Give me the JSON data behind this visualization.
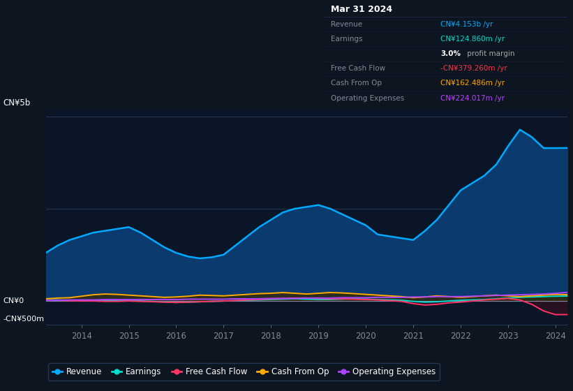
{
  "background_color": "#0d1520",
  "chart_bg_color": "#0a1628",
  "title_box": {
    "date": "Mar 31 2024",
    "rows": [
      {
        "label": "Revenue",
        "value": "CN¥4.153b /yr",
        "value_color": "#00aaff"
      },
      {
        "label": "Earnings",
        "value": "CN¥124.860m /yr",
        "value_color": "#00ddcc"
      },
      {
        "label": "",
        "value": "3.0%",
        "extra": " profit margin",
        "value_color": "#ffffff"
      },
      {
        "label": "Free Cash Flow",
        "value": "-CN¥379.260m /yr",
        "value_color": "#ff3344"
      },
      {
        "label": "Cash From Op",
        "value": "CN¥162.486m /yr",
        "value_color": "#ffaa00"
      },
      {
        "label": "Operating Expenses",
        "value": "CN¥224.017m /yr",
        "value_color": "#bb44ff"
      }
    ]
  },
  "ylabel": "CN¥5b",
  "y0_label": "CN¥0",
  "yneg_label": "-CN¥500m",
  "years": [
    2013.25,
    2013.5,
    2013.75,
    2014.0,
    2014.25,
    2014.5,
    2014.75,
    2015.0,
    2015.25,
    2015.5,
    2015.75,
    2016.0,
    2016.25,
    2016.5,
    2016.75,
    2017.0,
    2017.25,
    2017.5,
    2017.75,
    2018.0,
    2018.25,
    2018.5,
    2018.75,
    2019.0,
    2019.25,
    2019.5,
    2019.75,
    2020.0,
    2020.25,
    2020.5,
    2020.75,
    2021.0,
    2021.25,
    2021.5,
    2021.75,
    2022.0,
    2022.25,
    2022.5,
    2022.75,
    2023.0,
    2023.25,
    2023.5,
    2023.75,
    2024.0,
    2024.25
  ],
  "revenue": [
    1.3,
    1.5,
    1.65,
    1.75,
    1.85,
    1.9,
    1.95,
    2.0,
    1.85,
    1.65,
    1.45,
    1.3,
    1.2,
    1.15,
    1.18,
    1.25,
    1.5,
    1.75,
    2.0,
    2.2,
    2.4,
    2.5,
    2.55,
    2.6,
    2.5,
    2.35,
    2.2,
    2.05,
    1.8,
    1.75,
    1.7,
    1.65,
    1.9,
    2.2,
    2.6,
    3.0,
    3.2,
    3.4,
    3.7,
    4.2,
    4.65,
    4.45,
    4.15,
    4.15,
    4.153
  ],
  "earnings": [
    0.02,
    0.02,
    0.01,
    0.01,
    0.01,
    0.005,
    0.0,
    -0.005,
    -0.01,
    -0.02,
    -0.035,
    -0.05,
    -0.04,
    -0.03,
    -0.02,
    -0.01,
    0.0,
    0.01,
    0.02,
    0.03,
    0.04,
    0.05,
    0.04,
    0.03,
    0.03,
    0.04,
    0.05,
    0.04,
    0.03,
    0.02,
    0.01,
    -0.02,
    -0.04,
    -0.03,
    -0.01,
    0.01,
    0.02,
    0.03,
    0.05,
    0.07,
    0.09,
    0.1,
    0.11,
    0.12,
    0.1248
  ],
  "free_cash_flow": [
    0.01,
    0.01,
    0.0,
    -0.01,
    -0.01,
    -0.02,
    -0.02,
    -0.01,
    -0.02,
    -0.03,
    -0.04,
    -0.05,
    -0.04,
    -0.03,
    -0.02,
    -0.01,
    0.0,
    0.02,
    0.03,
    0.05,
    0.06,
    0.07,
    0.07,
    0.06,
    0.05,
    0.05,
    0.04,
    0.03,
    0.02,
    0.0,
    -0.02,
    -0.08,
    -0.12,
    -0.1,
    -0.06,
    -0.04,
    -0.01,
    0.02,
    0.04,
    0.06,
    0.02,
    -0.1,
    -0.28,
    -0.38,
    -0.3792
  ],
  "cash_from_op": [
    0.05,
    0.07,
    0.08,
    0.12,
    0.16,
    0.18,
    0.17,
    0.15,
    0.13,
    0.11,
    0.09,
    0.1,
    0.12,
    0.15,
    0.14,
    0.13,
    0.15,
    0.17,
    0.19,
    0.2,
    0.22,
    0.2,
    0.18,
    0.2,
    0.22,
    0.21,
    0.19,
    0.17,
    0.15,
    0.13,
    0.11,
    0.08,
    0.1,
    0.13,
    0.11,
    0.09,
    0.11,
    0.13,
    0.15,
    0.13,
    0.11,
    0.13,
    0.15,
    0.17,
    0.1625
  ],
  "operating_expenses": [
    0.01,
    0.01,
    0.02,
    0.02,
    0.02,
    0.03,
    0.03,
    0.03,
    0.03,
    0.03,
    0.03,
    0.03,
    0.04,
    0.04,
    0.04,
    0.04,
    0.05,
    0.05,
    0.05,
    0.06,
    0.06,
    0.06,
    0.07,
    0.07,
    0.07,
    0.08,
    0.08,
    0.08,
    0.09,
    0.09,
    0.09,
    0.1,
    0.1,
    0.11,
    0.11,
    0.11,
    0.12,
    0.13,
    0.14,
    0.15,
    0.16,
    0.17,
    0.18,
    0.2,
    0.224
  ],
  "revenue_color": "#00aaff",
  "earnings_color": "#00ddcc",
  "fcf_color": "#ff3366",
  "cash_op_color": "#ffaa00",
  "op_exp_color": "#aa44ff",
  "revenue_fill_color": "#0a3a6e",
  "earnings_fill_color": "#003a3a",
  "fcf_fill_color": "#3a1020",
  "cash_op_fill_color": "#3a2800",
  "legend_items": [
    {
      "label": "Revenue",
      "color": "#00aaff"
    },
    {
      "label": "Earnings",
      "color": "#00ddcc"
    },
    {
      "label": "Free Cash Flow",
      "color": "#ff3366"
    },
    {
      "label": "Cash From Op",
      "color": "#ffaa00"
    },
    {
      "label": "Operating Expenses",
      "color": "#aa44ff"
    }
  ],
  "xticks": [
    2014,
    2015,
    2016,
    2017,
    2018,
    2019,
    2020,
    2021,
    2022,
    2023,
    2024
  ],
  "ylim": [
    -0.65,
    5.2
  ],
  "grid_lines": [
    0.0,
    2.5,
    5.0
  ]
}
